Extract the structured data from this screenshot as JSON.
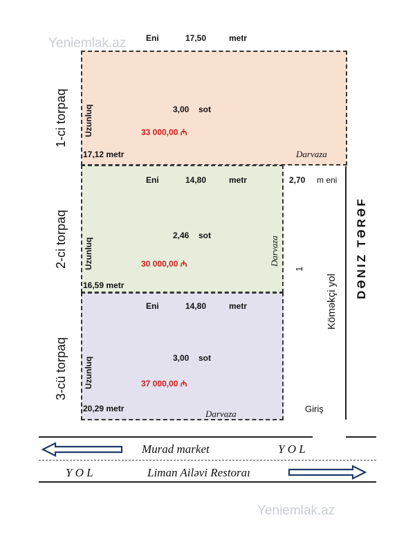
{
  "watermark": "Yeniemlak.az",
  "plots": [
    {
      "side_label": "1-ci torpaq",
      "eni_label": "Eni",
      "eni_value": "17,50",
      "eni_unit": "metr",
      "uzunluq_label": "Uzunluq",
      "uzunluq_value": "17,12 metr",
      "area_value": "3,00",
      "area_unit": "sot",
      "price": "33 000,00 ₼",
      "gate": "Darvaza",
      "fill_color": "#f9e1d2"
    },
    {
      "side_label": "2-ci torpaq",
      "eni_label": "Eni",
      "eni_value": "14,80",
      "eni_unit": "metr",
      "uzunluq_label": "Uzunluq",
      "uzunluq_value": "16,59 metr",
      "area_value": "2,46",
      "area_unit": "sot",
      "price": "30 000,00 ₼",
      "gate": "Darvaza",
      "fill_color": "#e6eedb"
    },
    {
      "side_label": "3-cü torpaq",
      "eni_label": "Eni",
      "eni_value": "14,80",
      "eni_unit": "metr",
      "uzunluq_label": "Uzunluq",
      "uzunluq_value": "20,29 metr",
      "area_value": "3,00",
      "area_unit": "sot",
      "price": "37 000,00 ₼",
      "gate": "Darvaza",
      "fill_color": "#e4e1ef"
    }
  ],
  "side_road": {
    "width_value": "2,70",
    "width_unit": "m eni",
    "number": "1",
    "name": "Köməkçi yol",
    "entrance": "Giriş"
  },
  "sea_side": "Dəniz tərəf",
  "road": {
    "murad_market": "Murad market",
    "yol_top": "Y O L",
    "yol_bottom": "Y O L",
    "restaurant": "Liman Ailəvi Restoraı"
  }
}
